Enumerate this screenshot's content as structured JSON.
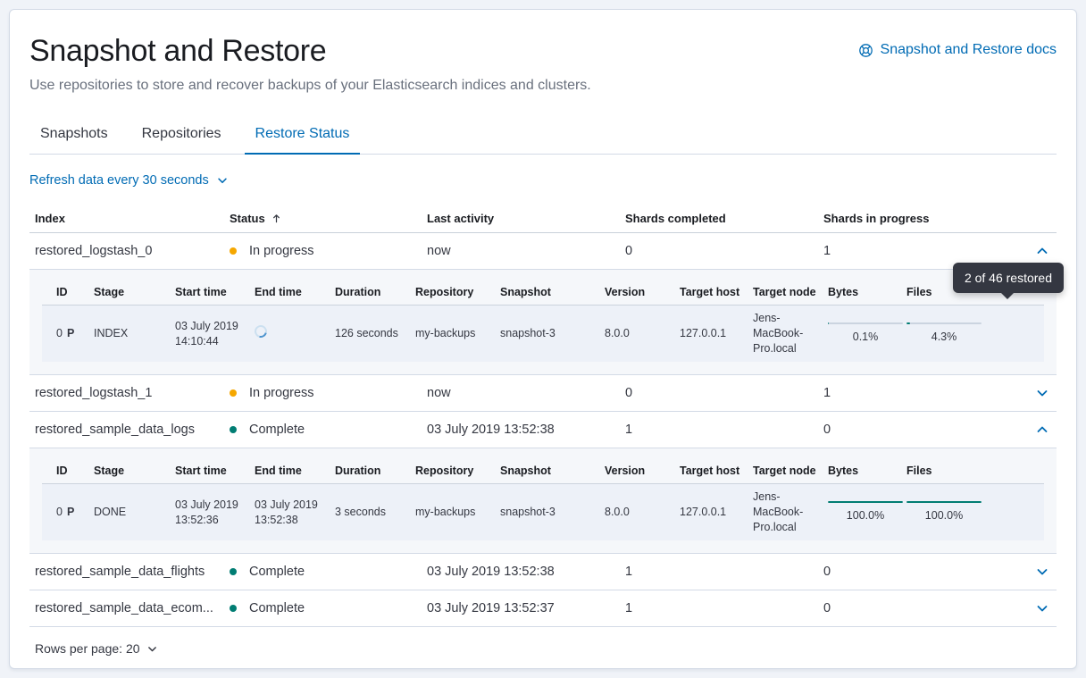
{
  "page": {
    "title": "Snapshot and Restore",
    "subtitle": "Use repositories to store and recover backups of your Elasticsearch indices and clusters.",
    "docs_link_label": "Snapshot and Restore docs"
  },
  "tabs": [
    {
      "label": "Snapshots",
      "active": false
    },
    {
      "label": "Repositories",
      "active": false
    },
    {
      "label": "Restore Status",
      "active": true
    }
  ],
  "refresh_control": {
    "label": "Refresh data every 30 seconds"
  },
  "restore_table": {
    "columns": {
      "index": "Index",
      "status": "Status",
      "last_activity": "Last activity",
      "shards_completed": "Shards completed",
      "shards_in_progress": "Shards in progress"
    },
    "sort": {
      "column": "Status",
      "direction": "ascending"
    },
    "rows": [
      {
        "index": "restored_logstash_0",
        "status": "In progress",
        "status_kind": "in_progress",
        "last_activity": "now",
        "shards_completed": "0",
        "shards_in_progress": "1",
        "expanded": true
      },
      {
        "index": "restored_logstash_1",
        "status": "In progress",
        "status_kind": "in_progress",
        "last_activity": "now",
        "shards_completed": "0",
        "shards_in_progress": "1",
        "expanded": false
      },
      {
        "index": "restored_sample_data_logs",
        "status": "Complete",
        "status_kind": "complete",
        "last_activity": "03 July 2019 13:52:38",
        "shards_completed": "1",
        "shards_in_progress": "0",
        "expanded": true
      },
      {
        "index": "restored_sample_data_flights",
        "status": "Complete",
        "status_kind": "complete",
        "last_activity": "03 July 2019 13:52:38",
        "shards_completed": "1",
        "shards_in_progress": "0",
        "expanded": false
      },
      {
        "index": "restored_sample_data_ecom...",
        "status": "Complete",
        "status_kind": "complete",
        "last_activity": "03 July 2019 13:52:37",
        "shards_completed": "1",
        "shards_in_progress": "0",
        "expanded": false
      }
    ]
  },
  "shard_table": {
    "columns": {
      "id": "ID",
      "stage": "Stage",
      "start_time": "Start time",
      "end_time": "End time",
      "duration": "Duration",
      "repository": "Repository",
      "snapshot": "Snapshot",
      "version": "Version",
      "target_host": "Target host",
      "target_node": "Target node",
      "bytes": "Bytes",
      "files": "Files"
    }
  },
  "shard_details": [
    {
      "id": "0",
      "shard_badge": "P",
      "stage": "INDEX",
      "start_time": "03 July 2019 14:10:44",
      "end_time_loading": true,
      "duration": "126 seconds",
      "repository": "my-backups",
      "snapshot": "snapshot-3",
      "version": "8.0.0",
      "target_host": "127.0.0.1",
      "target_node": "Jens-MacBook-Pro.local",
      "bytes_percent_label": "0.1%",
      "bytes_percent": 0.1,
      "files_percent_label": "4.3%",
      "files_percent": 4.3
    },
    {
      "id": "0",
      "shard_badge": "P",
      "stage": "DONE",
      "start_time": "03 July 2019 13:52:36",
      "end_time": "03 July 2019 13:52:38",
      "duration": "3 seconds",
      "repository": "my-backups",
      "snapshot": "snapshot-3",
      "version": "8.0.0",
      "target_host": "127.0.0.1",
      "target_node": "Jens-MacBook-Pro.local",
      "bytes_percent_label": "100.0%",
      "bytes_percent": 100,
      "files_percent_label": "100.0%",
      "files_percent": 100
    }
  ],
  "tooltip": {
    "text": "2 of 46 restored"
  },
  "pagination": {
    "rows_per_page_label": "Rows per page: 20"
  },
  "colors": {
    "primary": "#006BB4",
    "in_progress_dot": "#F5A700",
    "complete_dot": "#017D73",
    "progress_fill": "#017D73",
    "tooltip_bg": "#343741",
    "panel_border": "#D3DAE6",
    "expanded_bg": "#F5F7FA"
  }
}
